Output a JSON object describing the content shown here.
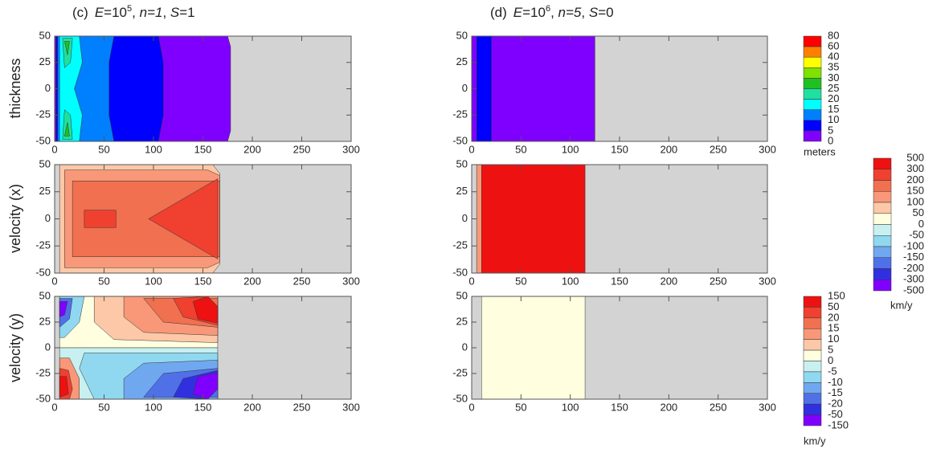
{
  "titles": [
    {
      "parts": [
        "(c)",
        "E",
        "=10",
        "5",
        ", ",
        "n=1",
        ", ",
        "S",
        "=1"
      ]
    },
    {
      "parts": [
        "(d)",
        "E",
        "=10",
        "6",
        ", ",
        "n=5",
        ", ",
        "S",
        "=0"
      ]
    }
  ],
  "chart_data": [
    {
      "type": "contour",
      "ylabel": "thickness",
      "xlim": [
        0,
        300
      ],
      "ylim": [
        -50,
        50
      ],
      "xticks": [
        0,
        50,
        100,
        150,
        200,
        250,
        300
      ],
      "yticks": [
        -50,
        -25,
        0,
        25,
        50
      ]
    },
    {
      "type": "contour",
      "xlim": [
        0,
        300
      ],
      "ylim": [
        -50,
        50
      ],
      "xticks": [
        0,
        50,
        100,
        150,
        200,
        250,
        300
      ],
      "yticks": [
        -50,
        -25,
        0,
        25,
        50
      ]
    },
    {
      "type": "contour",
      "ylabel": "velocity (x)",
      "xlim": [
        0,
        300
      ],
      "ylim": [
        -50,
        50
      ],
      "xticks": [
        0,
        50,
        100,
        150,
        200,
        250,
        300
      ],
      "yticks": [
        -50,
        -25,
        0,
        25,
        50
      ]
    },
    {
      "type": "contour",
      "xlim": [
        0,
        300
      ],
      "ylim": [
        -50,
        50
      ],
      "xticks": [
        0,
        50,
        100,
        150,
        200,
        250,
        300
      ],
      "yticks": [
        -50,
        -25,
        0,
        25,
        50
      ]
    },
    {
      "type": "contour",
      "ylabel": "velocity (y)",
      "xlim": [
        0,
        300
      ],
      "ylim": [
        -50,
        50
      ],
      "xticks": [
        0,
        50,
        100,
        150,
        200,
        250,
        300
      ],
      "yticks": [
        -50,
        -25,
        0,
        25,
        50
      ]
    },
    {
      "type": "contour",
      "xlim": [
        0,
        300
      ],
      "ylim": [
        -50,
        50
      ],
      "xticks": [
        0,
        50,
        100,
        150,
        200,
        250,
        300
      ],
      "yticks": [
        -50,
        -25,
        0,
        25,
        50
      ]
    }
  ],
  "colorbars": [
    {
      "levels": [
        80,
        60,
        40,
        35,
        30,
        25,
        20,
        15,
        10,
        5,
        0
      ],
      "colors": [
        "#ff0000",
        "#ff8000",
        "#ffff00",
        "#80e000",
        "#20c020",
        "#20e0a0",
        "#00ffff",
        "#0080ff",
        "#0000ff",
        "#8000ff"
      ],
      "unit": "meters"
    },
    {
      "levels": [
        500,
        300,
        200,
        150,
        100,
        50,
        0,
        -50,
        -100,
        -150,
        -200,
        -300,
        -500
      ],
      "colors": [
        "#ee1111",
        "#f04030",
        "#f07050",
        "#f89878",
        "#fcc8a8",
        "#ffffe0",
        "#c8f0f0",
        "#90d8f0",
        "#70a8f0",
        "#5070e8",
        "#3030e0",
        "#8000ff"
      ],
      "unit": "km/y"
    },
    {
      "levels": [
        150,
        50,
        20,
        15,
        10,
        5,
        0,
        -5,
        -10,
        -15,
        -20,
        -50,
        -150
      ],
      "colors": [
        "#ee1111",
        "#f04030",
        "#f07050",
        "#f89878",
        "#fcc8a8",
        "#ffffe0",
        "#c8f0f0",
        "#90d8f0",
        "#70a8f0",
        "#5070e8",
        "#3030e0",
        "#8000ff"
      ],
      "unit": "km/y"
    }
  ]
}
